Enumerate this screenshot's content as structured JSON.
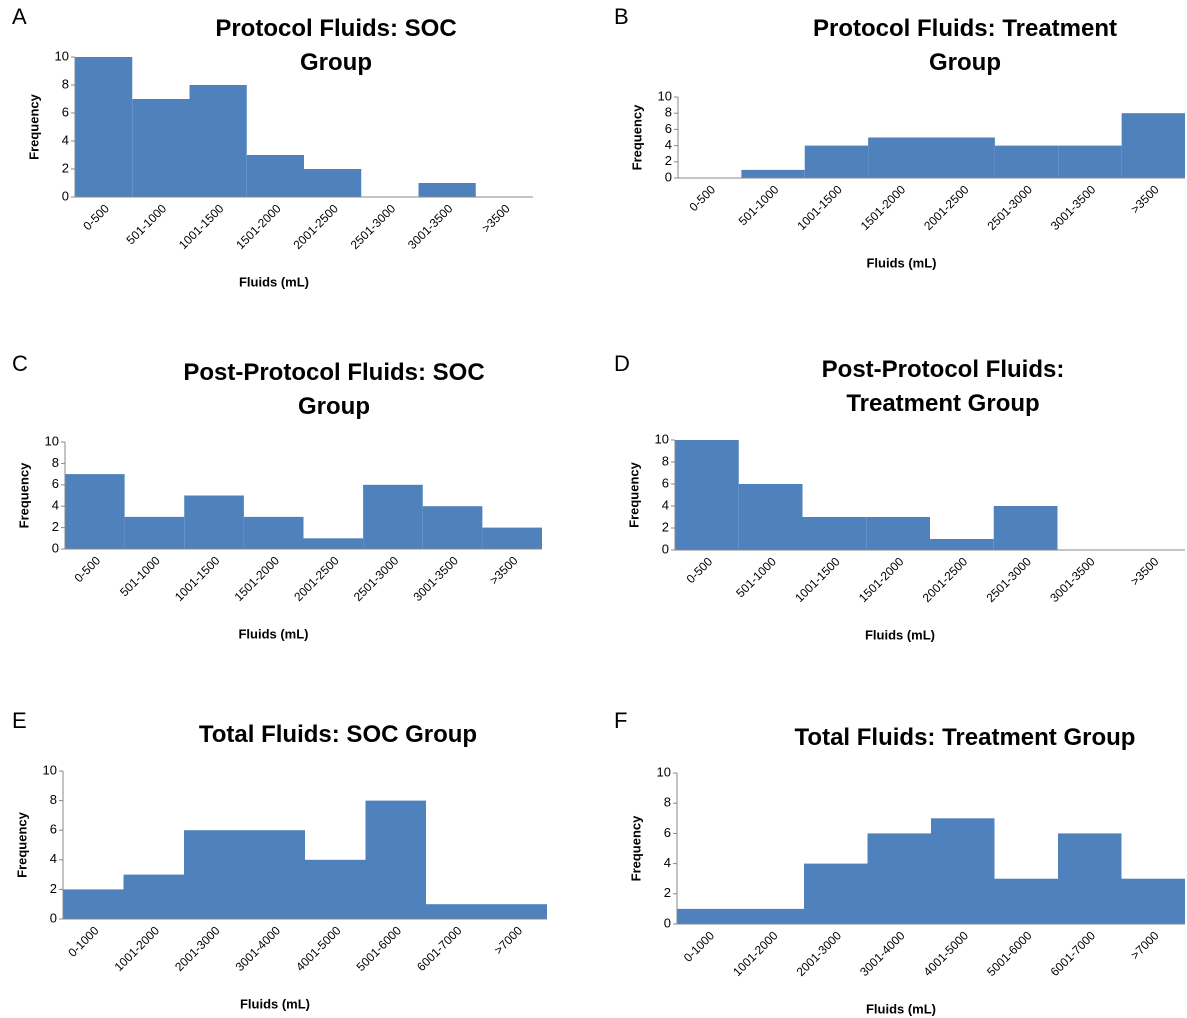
{
  "chart_data": [
    {
      "type": "bar",
      "label": "A",
      "title": "Protocol Fluids: SOC Group",
      "xlabel": "Fluids (mL)",
      "ylabel": "Frequency",
      "color": "#4f81bd",
      "categories": [
        "0-500",
        "501-1000",
        "1001-1500",
        "1501-2000",
        "2001-2500",
        "2501-3000",
        "3001-3500",
        ">3500"
      ],
      "values": [
        10,
        7,
        8,
        3,
        2,
        0,
        1,
        0
      ],
      "ylim": [
        0,
        10
      ],
      "yticks": [
        0,
        2,
        4,
        6,
        8,
        10
      ]
    },
    {
      "type": "bar",
      "label": "B",
      "title": "Protocol Fluids: Treatment Group",
      "xlabel": "Fluids (mL)",
      "ylabel": "Frequency",
      "color": "#4f81bd",
      "categories": [
        "0-500",
        "501-1000",
        "1001-1500",
        "1501-2000",
        "2001-2500",
        "2501-3000",
        "3001-3500",
        ">3500"
      ],
      "values": [
        0,
        1,
        4,
        5,
        5,
        4,
        4,
        8
      ],
      "ylim": [
        0,
        10
      ],
      "yticks": [
        0,
        2,
        4,
        6,
        8,
        10
      ]
    },
    {
      "type": "bar",
      "label": "C",
      "title": "Post-Protocol Fluids: SOC Group",
      "xlabel": "Fluids (mL)",
      "ylabel": "Frequency",
      "color": "#4f81bd",
      "categories": [
        "0-500",
        "501-1000",
        "1001-1500",
        "1501-2000",
        "2001-2500",
        "2501-3000",
        "3001-3500",
        ">3500"
      ],
      "values": [
        7,
        3,
        5,
        3,
        1,
        6,
        4,
        2
      ],
      "ylim": [
        0,
        10
      ],
      "yticks": [
        0,
        2,
        4,
        6,
        8,
        10
      ]
    },
    {
      "type": "bar",
      "label": "D",
      "title": "Post-Protocol Fluids: Treatment Group",
      "xlabel": "Fluids (mL)",
      "ylabel": "Frequency",
      "color": "#4f81bd",
      "categories": [
        "0-500",
        "501-1000",
        "1001-1500",
        "1501-2000",
        "2001-2500",
        "2501-3000",
        "3001-3500",
        ">3500"
      ],
      "values": [
        10,
        6,
        3,
        3,
        1,
        4,
        0,
        0
      ],
      "ylim": [
        0,
        10
      ],
      "yticks": [
        0,
        2,
        4,
        6,
        8,
        10
      ]
    },
    {
      "type": "bar",
      "label": "E",
      "title": "Total Fluids: SOC Group",
      "xlabel": "Fluids (mL)",
      "ylabel": "Frequency",
      "color": "#4f81bd",
      "categories": [
        "0-1000",
        "1001-2000",
        "2001-3000",
        "3001-4000",
        "4001-5000",
        "5001-6000",
        "6001-7000",
        ">7000"
      ],
      "values": [
        2,
        3,
        6,
        6,
        4,
        8,
        1,
        1
      ],
      "ylim": [
        0,
        10
      ],
      "yticks": [
        0,
        2,
        4,
        6,
        8,
        10
      ]
    },
    {
      "type": "bar",
      "label": "F",
      "title": "Total Fluids: Treatment Group",
      "xlabel": "Fluids (mL)",
      "ylabel": "Frequency",
      "color": "#4f81bd",
      "categories": [
        "0-1000",
        "1001-2000",
        "2001-3000",
        "3001-4000",
        "4001-5000",
        "5001-6000",
        "6001-7000",
        ">7000"
      ],
      "values": [
        1,
        1,
        4,
        6,
        7,
        3,
        6,
        3
      ],
      "ylim": [
        0,
        10
      ],
      "yticks": [
        0,
        2,
        4,
        6,
        8,
        10
      ]
    }
  ]
}
